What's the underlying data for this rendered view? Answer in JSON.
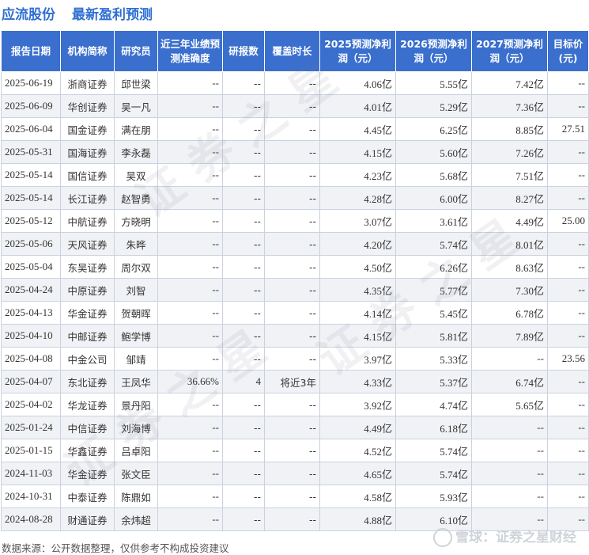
{
  "header": {
    "company": "应流股份",
    "section": "最新盈利预测"
  },
  "table": {
    "columns": [
      "报告日期",
      "机构简称",
      "研究员",
      "近三年业绩预测准确度",
      "研报数",
      "覆盖时长",
      "2025预测净利润（元）",
      "2026预测净利润（元）",
      "2027预测净利润（元）",
      "目标价(元)"
    ],
    "rows": [
      [
        "2025-06-19",
        "浙商证券",
        "邱世梁",
        "--",
        "--",
        "--",
        "4.06亿",
        "5.55亿",
        "7.42亿",
        "--"
      ],
      [
        "2025-06-09",
        "华创证券",
        "吴一凡",
        "--",
        "--",
        "--",
        "4.01亿",
        "5.29亿",
        "7.36亿",
        "--"
      ],
      [
        "2025-06-04",
        "国金证券",
        "满在朋",
        "--",
        "--",
        "--",
        "4.45亿",
        "6.25亿",
        "8.85亿",
        "27.51"
      ],
      [
        "2025-05-31",
        "国海证券",
        "李永磊",
        "--",
        "--",
        "--",
        "4.15亿",
        "5.60亿",
        "7.26亿",
        "--"
      ],
      [
        "2025-05-14",
        "国信证券",
        "吴双",
        "--",
        "--",
        "--",
        "4.23亿",
        "5.68亿",
        "7.51亿",
        "--"
      ],
      [
        "2025-05-14",
        "长江证券",
        "赵智勇",
        "--",
        "--",
        "--",
        "4.28亿",
        "6.00亿",
        "8.27亿",
        "--"
      ],
      [
        "2025-05-12",
        "中航证券",
        "方晓明",
        "--",
        "--",
        "--",
        "3.07亿",
        "3.61亿",
        "4.49亿",
        "25.00"
      ],
      [
        "2025-05-06",
        "天风证券",
        "朱晔",
        "--",
        "--",
        "--",
        "4.20亿",
        "5.74亿",
        "8.01亿",
        "--"
      ],
      [
        "2025-05-04",
        "东吴证券",
        "周尔双",
        "--",
        "--",
        "--",
        "4.50亿",
        "6.26亿",
        "8.63亿",
        "--"
      ],
      [
        "2025-04-24",
        "中原证券",
        "刘智",
        "--",
        "--",
        "--",
        "4.35亿",
        "5.77亿",
        "7.30亿",
        "--"
      ],
      [
        "2025-04-13",
        "华金证券",
        "贺朝晖",
        "--",
        "--",
        "--",
        "4.14亿",
        "5.45亿",
        "6.78亿",
        "--"
      ],
      [
        "2025-04-10",
        "中邮证券",
        "鲍学博",
        "--",
        "--",
        "--",
        "4.15亿",
        "5.81亿",
        "7.89亿",
        "--"
      ],
      [
        "2025-04-08",
        "中金公司",
        "邹靖",
        "--",
        "--",
        "--",
        "3.97亿",
        "5.33亿",
        "--",
        "23.56"
      ],
      [
        "2025-04-07",
        "东北证券",
        "王凤华",
        "36.66%",
        "4",
        "将近3年",
        "4.33亿",
        "5.37亿",
        "6.74亿",
        "--"
      ],
      [
        "2025-04-02",
        "华龙证券",
        "景丹阳",
        "--",
        "--",
        "--",
        "3.92亿",
        "4.74亿",
        "5.65亿",
        "--"
      ],
      [
        "2025-01-24",
        "中信证券",
        "刘海博",
        "--",
        "--",
        "--",
        "4.49亿",
        "6.18亿",
        "--",
        "--"
      ],
      [
        "2025-01-15",
        "华鑫证券",
        "吕卓阳",
        "--",
        "--",
        "--",
        "4.52亿",
        "5.74亿",
        "--",
        "--"
      ],
      [
        "2024-11-03",
        "华金证券",
        "张文臣",
        "--",
        "--",
        "--",
        "4.65亿",
        "5.74亿",
        "--",
        "--"
      ],
      [
        "2024-10-31",
        "中泰证券",
        "陈鼎如",
        "--",
        "--",
        "--",
        "4.58亿",
        "5.93亿",
        "--",
        "--"
      ],
      [
        "2024-08-28",
        "财通证券",
        "余炜超",
        "--",
        "--",
        "--",
        "4.88亿",
        "6.10亿",
        "--",
        "--"
      ]
    ]
  },
  "footer": {
    "source": "数据来源：公开数据整理，仅供参考不构成投资建议",
    "brand": "雪球：证券之星财经"
  },
  "colors": {
    "header_bg": "#3a6fce",
    "title": "#2e6fd1",
    "profit": "#e0261c",
    "row_alt": "#f0f2f6"
  }
}
